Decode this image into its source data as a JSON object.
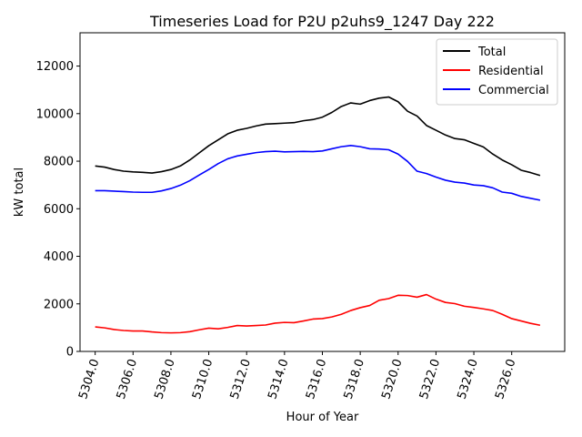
{
  "chart_data": {
    "type": "line",
    "title": "Timeseries Load for P2U p2uhs9_1247  Day 222",
    "xlabel": "Hour of Year",
    "ylabel": "kW total",
    "xlim": [
      5303.2,
      5328.8
    ],
    "ylim": [
      0,
      13400
    ],
    "xticks": [
      "5304.0",
      "5306.0",
      "5308.0",
      "5310.0",
      "5312.0",
      "5314.0",
      "5316.0",
      "5318.0",
      "5320.0",
      "5322.0",
      "5324.0",
      "5326.0"
    ],
    "xtick_values": [
      5304,
      5306,
      5308,
      5310,
      5312,
      5314,
      5316,
      5318,
      5320,
      5322,
      5324,
      5326
    ],
    "yticks": [
      "0",
      "2000",
      "4000",
      "6000",
      "8000",
      "10000",
      "12000"
    ],
    "ytick_values": [
      0,
      2000,
      4000,
      6000,
      8000,
      10000,
      12000
    ],
    "legend_position": "top-right",
    "x": [
      5304.0,
      5304.5,
      5305.0,
      5305.5,
      5306.0,
      5306.5,
      5307.0,
      5307.5,
      5308.0,
      5308.5,
      5309.0,
      5309.5,
      5310.0,
      5310.5,
      5311.0,
      5311.5,
      5312.0,
      5312.5,
      5313.0,
      5313.5,
      5314.0,
      5314.5,
      5315.0,
      5315.5,
      5316.0,
      5316.5,
      5317.0,
      5317.5,
      5318.0,
      5318.5,
      5319.0,
      5319.5,
      5320.0,
      5320.5,
      5321.0,
      5321.5,
      5322.0,
      5322.5,
      5323.0,
      5323.5,
      5324.0,
      5324.5,
      5325.0,
      5325.5,
      5326.0,
      5326.5,
      5327.0,
      5327.5
    ],
    "series": [
      {
        "name": "Total",
        "color": "#000000",
        "values": [
          7800,
          7750,
          7650,
          7580,
          7550,
          7530,
          7500,
          7560,
          7650,
          7800,
          8050,
          8350,
          8650,
          8900,
          9150,
          9300,
          9380,
          9480,
          9560,
          9580,
          9600,
          9620,
          9700,
          9750,
          9850,
          10050,
          10300,
          10450,
          10400,
          10550,
          10650,
          10700,
          10500,
          10100,
          9900,
          9500,
          9300,
          9100,
          8950,
          8900,
          8750,
          8600,
          8300,
          8050,
          7850,
          7620,
          7520,
          7400
        ]
      },
      {
        "name": "Residential",
        "color": "#ff0000",
        "values": [
          1030,
          990,
          920,
          880,
          860,
          860,
          820,
          790,
          780,
          790,
          830,
          910,
          980,
          950,
          1010,
          1090,
          1070,
          1090,
          1110,
          1190,
          1220,
          1210,
          1280,
          1360,
          1380,
          1450,
          1560,
          1720,
          1840,
          1930,
          2150,
          2220,
          2360,
          2350,
          2280,
          2390,
          2200,
          2060,
          2010,
          1900,
          1850,
          1790,
          1720,
          1560,
          1380,
          1280,
          1180,
          1100
        ]
      },
      {
        "name": "Commercial",
        "color": "#0000ff",
        "values": [
          6760,
          6760,
          6740,
          6720,
          6700,
          6690,
          6690,
          6750,
          6850,
          6990,
          7180,
          7420,
          7650,
          7900,
          8100,
          8220,
          8290,
          8360,
          8400,
          8420,
          8390,
          8400,
          8410,
          8400,
          8430,
          8520,
          8610,
          8660,
          8610,
          8520,
          8510,
          8480,
          8300,
          7990,
          7580,
          7480,
          7330,
          7200,
          7120,
          7080,
          7000,
          6970,
          6880,
          6700,
          6650,
          6520,
          6440,
          6360
        ]
      }
    ]
  }
}
